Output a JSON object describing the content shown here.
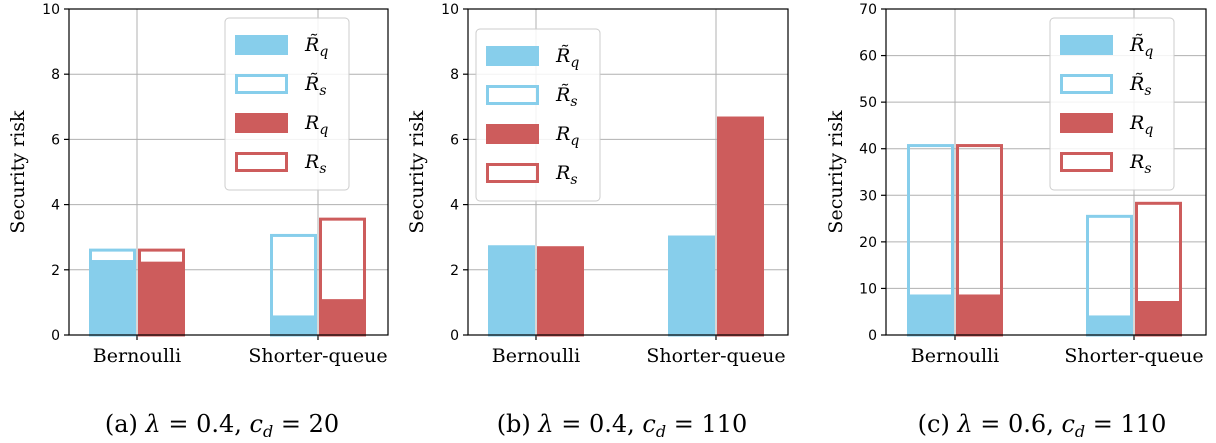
{
  "colors": {
    "light_blue": "#87ceeb",
    "red": "#cd5c5c",
    "grid": "#b0b0b0",
    "axis": "#000000"
  },
  "legend_labels": {
    "rq_tilde": "R̃q",
    "rs_tilde": "R̃s",
    "rq": "Rq",
    "rs": "Rs"
  },
  "chart_data": [
    {
      "type": "bar",
      "caption": "(a) λ = 0.4, c_d = 20",
      "ylabel": "Security risk",
      "categories": [
        "Bernoulli",
        "Shorter-queue"
      ],
      "ylim": [
        0,
        10
      ],
      "yticks": [
        0,
        2,
        4,
        6,
        8,
        10
      ],
      "grid": true,
      "legend_position": "top-right",
      "series": [
        {
          "name": "R̃q",
          "style": "filled",
          "color": "#87ceeb",
          "values": [
            2.3,
            0.6
          ]
        },
        {
          "name": "R̃s",
          "style": "outline",
          "color": "#87ceeb",
          "values": [
            2.65,
            3.1
          ]
        },
        {
          "name": "Rq",
          "style": "filled",
          "color": "#cd5c5c",
          "values": [
            2.25,
            1.1
          ]
        },
        {
          "name": "Rs",
          "style": "outline",
          "color": "#cd5c5c",
          "values": [
            2.65,
            3.6
          ]
        }
      ]
    },
    {
      "type": "bar",
      "caption": "(b) λ = 0.4, c_d = 110",
      "ylabel": "Security risk",
      "categories": [
        "Bernoulli",
        "Shorter-queue"
      ],
      "ylim": [
        0,
        10
      ],
      "yticks": [
        0,
        2,
        4,
        6,
        8,
        10
      ],
      "grid": true,
      "legend_position": "top-left",
      "series": [
        {
          "name": "R̃q",
          "style": "filled",
          "color": "#87ceeb",
          "values": [
            2.75,
            3.05
          ]
        },
        {
          "name": "R̃s",
          "style": "outline",
          "color": "#87ceeb",
          "values": [
            2.75,
            3.05
          ]
        },
        {
          "name": "Rq",
          "style": "filled",
          "color": "#cd5c5c",
          "values": [
            2.72,
            6.7
          ]
        },
        {
          "name": "Rs",
          "style": "outline",
          "color": "#cd5c5c",
          "values": [
            2.72,
            6.7
          ]
        }
      ]
    },
    {
      "type": "bar",
      "caption": "(c) λ = 0.6, c_d = 110",
      "ylabel": "Security risk",
      "categories": [
        "Bernoulli",
        "Shorter-queue"
      ],
      "ylim": [
        0,
        70
      ],
      "yticks": [
        0,
        10,
        20,
        30,
        40,
        50,
        60,
        70
      ],
      "grid": true,
      "legend_position": "top-right",
      "series": [
        {
          "name": "R̃q",
          "style": "filled",
          "color": "#87ceeb",
          "values": [
            8.7,
            4.2
          ]
        },
        {
          "name": "R̃s",
          "style": "outline",
          "color": "#87ceeb",
          "values": [
            41.0,
            25.8
          ]
        },
        {
          "name": "Rq",
          "style": "filled",
          "color": "#cd5c5c",
          "values": [
            8.7,
            7.3
          ]
        },
        {
          "name": "Rs",
          "style": "outline",
          "color": "#cd5c5c",
          "values": [
            41.0,
            28.6
          ]
        }
      ]
    }
  ]
}
